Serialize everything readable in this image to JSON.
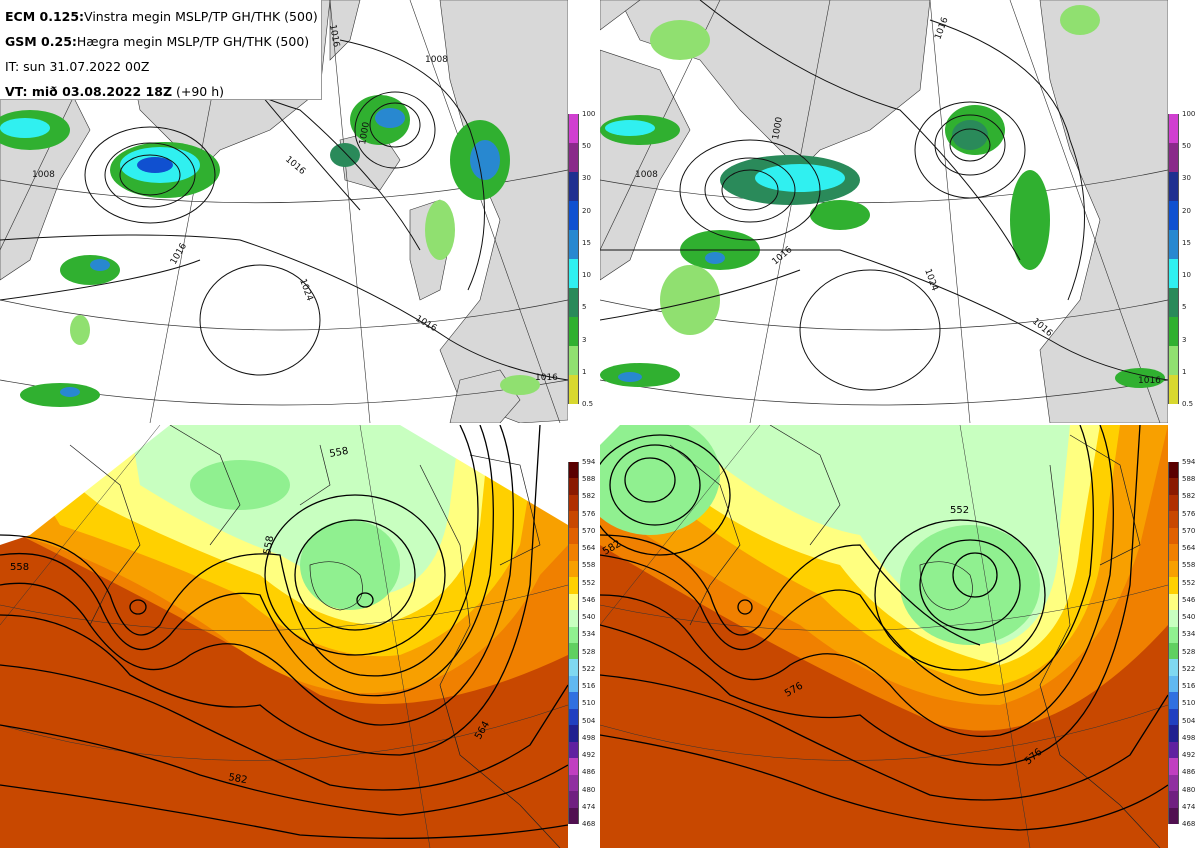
{
  "info": {
    "line1_bold": "ECM 0.125:",
    "line1_text": "Vinstra megin MSLP/TP GH/THK (500)",
    "line2_bold": "GSM 0.25:",
    "line2_text": "Hægra megin MSLP/TP GH/THK (500)",
    "line3_text": "IT: sun 31.07.2022 00Z",
    "line4_bold": "VT: mið 03.08.2022 18Z",
    "line4_text": "(+90 h)"
  },
  "precip_scale": {
    "levels": [
      "100",
      "50",
      "30",
      "20",
      "15",
      "10",
      "5",
      "3",
      "1",
      "0.5"
    ],
    "colors": [
      "#d040d0",
      "#8a2a8a",
      "#203090",
      "#1050d0",
      "#2888d0",
      "#30f0f0",
      "#2a8a5a",
      "#30b030",
      "#90e070",
      "#d8d830"
    ]
  },
  "thk_scale": {
    "levels": [
      "594",
      "588",
      "582",
      "576",
      "570",
      "564",
      "558",
      "552",
      "546",
      "540",
      "534",
      "528",
      "522",
      "516",
      "510",
      "504",
      "498",
      "492",
      "486",
      "480",
      "474",
      "468"
    ],
    "colors": [
      "#5a0000",
      "#8a1a00",
      "#b03000",
      "#c84800",
      "#e06000",
      "#f08000",
      "#f8a000",
      "#ffd000",
      "#ffff80",
      "#c8ffc0",
      "#90f090",
      "#60d060",
      "#80d8f0",
      "#60b8f0",
      "#3070e0",
      "#2040c0",
      "#202090",
      "#6020a0",
      "#c040c0",
      "#9030a0",
      "#702080",
      "#501050"
    ]
  },
  "mslp_labels_left": [
    "1016",
    "1008",
    "1000",
    "1016",
    "1008",
    "1016",
    "1024",
    "1016",
    "1016"
  ],
  "mslp_labels_right": [
    "1008",
    "1016",
    "1000",
    "1016",
    "1024",
    "1016",
    "1016"
  ],
  "gh_labels_left": [
    "558",
    "558",
    "558",
    "582",
    "564"
  ],
  "gh_labels_right": [
    "552",
    "576",
    "576",
    "582"
  ]
}
